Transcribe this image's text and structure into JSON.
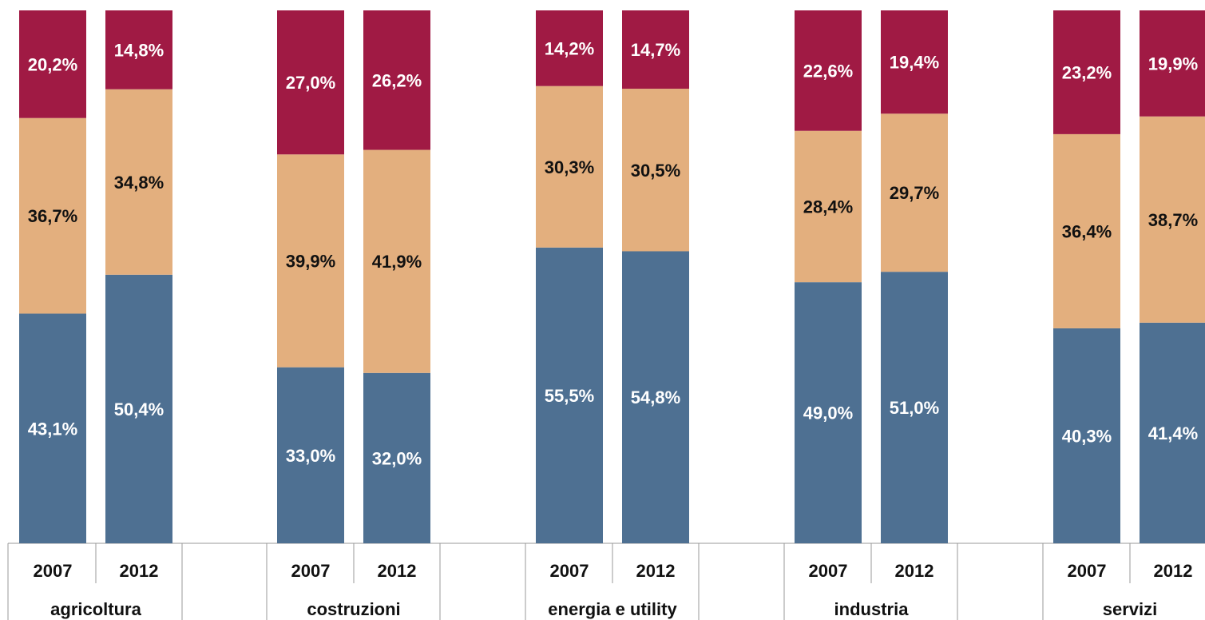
{
  "chart_data": {
    "type": "bar",
    "stacked": true,
    "groups": [
      {
        "category": "agricoltura",
        "years": [
          {
            "year": "2007",
            "values": [
              43.1,
              36.7,
              20.2
            ],
            "labels": [
              "43,1%",
              "36,7%",
              "20,2%"
            ]
          },
          {
            "year": "2012",
            "values": [
              50.4,
              34.8,
              14.8
            ],
            "labels": [
              "50,4%",
              "34,8%",
              "14,8%"
            ]
          }
        ]
      },
      {
        "category": "costruzioni",
        "years": [
          {
            "year": "2007",
            "values": [
              33.0,
              39.9,
              27.0
            ],
            "labels": [
              "33,0%",
              "39,9%",
              "27,0%"
            ]
          },
          {
            "year": "2012",
            "values": [
              32.0,
              41.9,
              26.2
            ],
            "labels": [
              "32,0%",
              "41,9%",
              "26,2%"
            ]
          }
        ]
      },
      {
        "category": "energia e utility",
        "years": [
          {
            "year": "2007",
            "values": [
              55.5,
              30.3,
              14.2
            ],
            "labels": [
              "55,5%",
              "30,3%",
              "14,2%"
            ]
          },
          {
            "year": "2012",
            "values": [
              54.8,
              30.5,
              14.7
            ],
            "labels": [
              "54,8%",
              "30,5%",
              "14,7%"
            ]
          }
        ]
      },
      {
        "category": "industria",
        "years": [
          {
            "year": "2007",
            "values": [
              49.0,
              28.4,
              22.6
            ],
            "labels": [
              "49,0%",
              "28,4%",
              "22,6%"
            ]
          },
          {
            "year": "2012",
            "values": [
              51.0,
              29.7,
              19.4
            ],
            "labels": [
              "51,0%",
              "29,7%",
              "19,4%"
            ]
          }
        ]
      },
      {
        "category": "servizi",
        "years": [
          {
            "year": "2007",
            "values": [
              40.3,
              36.4,
              23.2
            ],
            "labels": [
              "40,3%",
              "36,4%",
              "23,2%"
            ]
          },
          {
            "year": "2012",
            "values": [
              41.4,
              38.7,
              19.9
            ],
            "labels": [
              "41,4%",
              "38,7%",
              "19,9%"
            ]
          }
        ]
      }
    ],
    "series_colors": [
      "#4E7092",
      "#E3AF7E",
      "#A01A44"
    ],
    "ylim": [
      0,
      100
    ],
    "grid": false,
    "legend": "none"
  }
}
